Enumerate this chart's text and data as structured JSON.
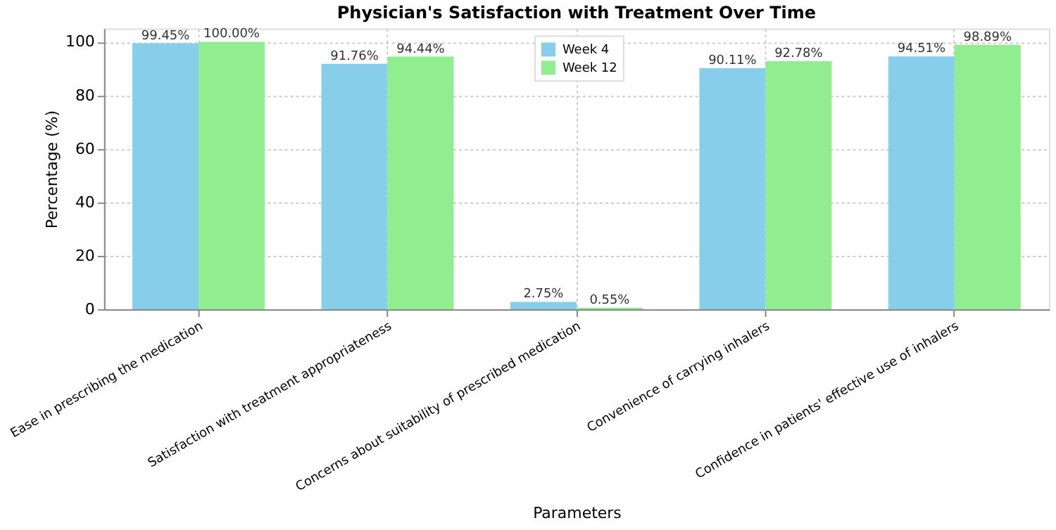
{
  "chart_data": {
    "type": "bar",
    "title": "Physician's Satisfaction with Treatment Over Time",
    "xlabel": "Parameters",
    "ylabel": "Percentage (%)",
    "categories": [
      "Ease in prescribing the medication",
      "Satisfaction with treatment appropriateness",
      "Concerns about suitability of prescribed medication",
      "Convenience of carrying inhalers",
      "Confidence in patients' effective use of inhalers"
    ],
    "series": [
      {
        "name": "Week 4",
        "color": "#87ceeb",
        "values": [
          99.45,
          91.76,
          2.75,
          90.11,
          94.51
        ],
        "value_labels": [
          "99.45%",
          "91.76%",
          "2.75%",
          "90.11%",
          "94.51%"
        ]
      },
      {
        "name": "Week 12",
        "color": "#90ee90",
        "values": [
          100.0,
          94.44,
          0.55,
          92.78,
          98.89
        ],
        "value_labels": [
          "100.00%",
          "94.44%",
          "0.55%",
          "92.78%",
          "98.89%"
        ]
      }
    ],
    "ylim": [
      0,
      105
    ],
    "yticks": [
      0,
      20,
      40,
      60,
      80,
      100
    ],
    "grid": true,
    "legend": "top"
  }
}
